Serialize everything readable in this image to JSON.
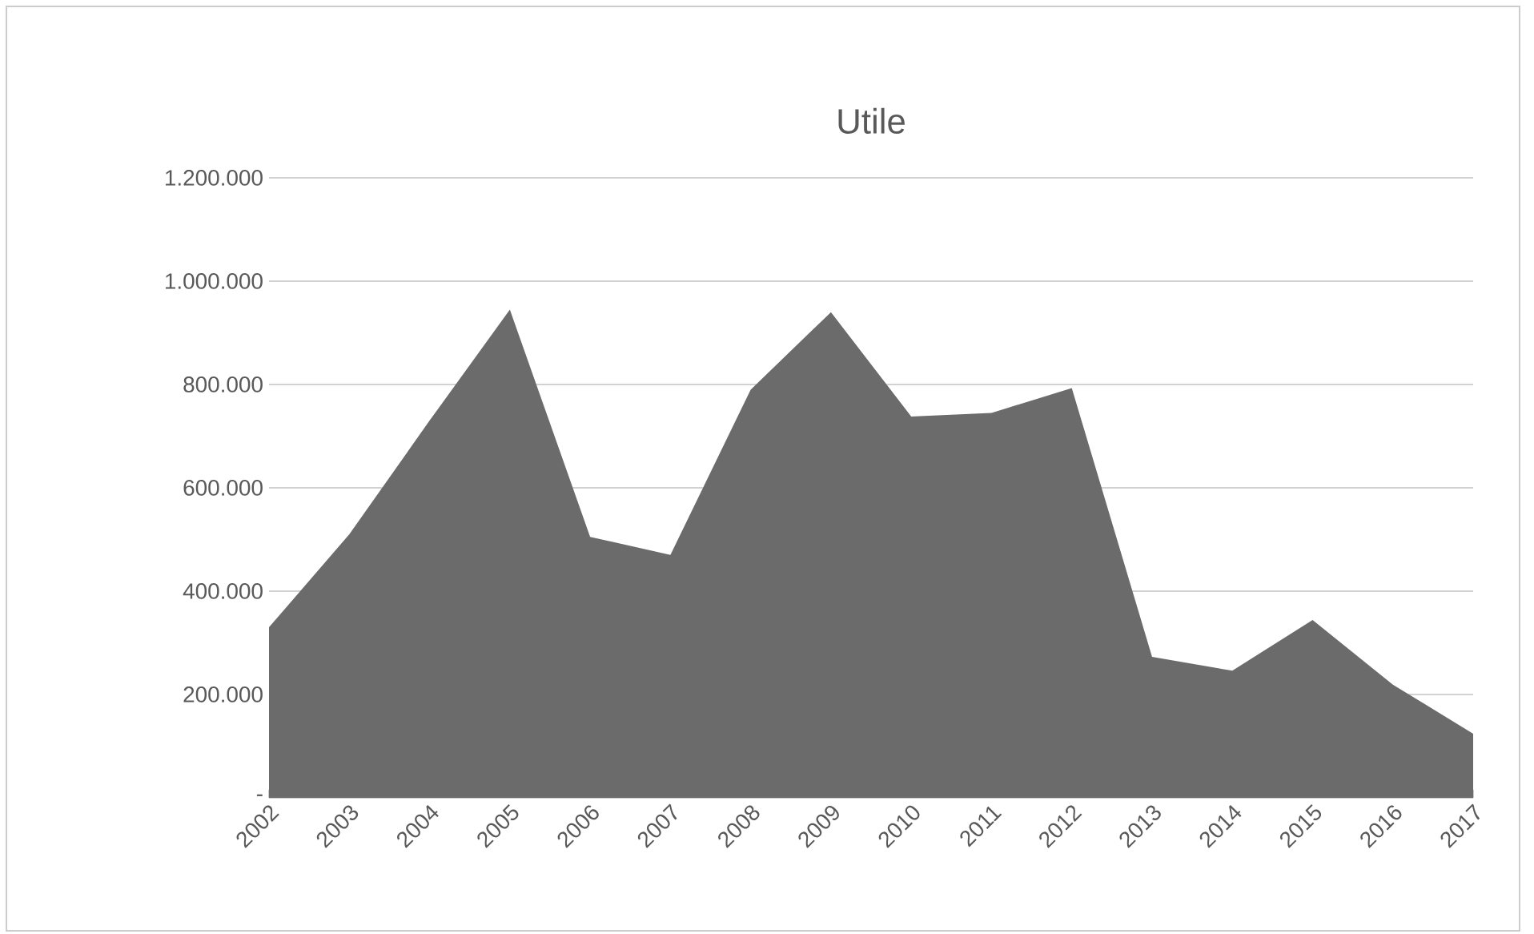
{
  "chart_data": {
    "type": "area",
    "title": "Utile",
    "categories": [
      "2002",
      "2003",
      "2004",
      "2005",
      "2006",
      "2007",
      "2008",
      "2009",
      "2010",
      "2011",
      "2012",
      "2013",
      "2014",
      "2015",
      "2016",
      "2017"
    ],
    "values": [
      330000,
      510000,
      730000,
      945000,
      505000,
      470000,
      790000,
      940000,
      738000,
      745000,
      793000,
      273000,
      246000,
      344000,
      219000,
      124000
    ],
    "color": "#6b6b6b",
    "ylim": [
      0,
      1200000
    ],
    "yticks": [
      {
        "value": 0,
        "label": "-"
      },
      {
        "value": 200000,
        "label": "200.000"
      },
      {
        "value": 400000,
        "label": "400.000"
      },
      {
        "value": 600000,
        "label": "600.000"
      },
      {
        "value": 800000,
        "label": "800.000"
      },
      {
        "value": 1000000,
        "label": "1.000.000"
      },
      {
        "value": 1200000,
        "label": "1.200.000"
      }
    ],
    "grid": "y"
  }
}
